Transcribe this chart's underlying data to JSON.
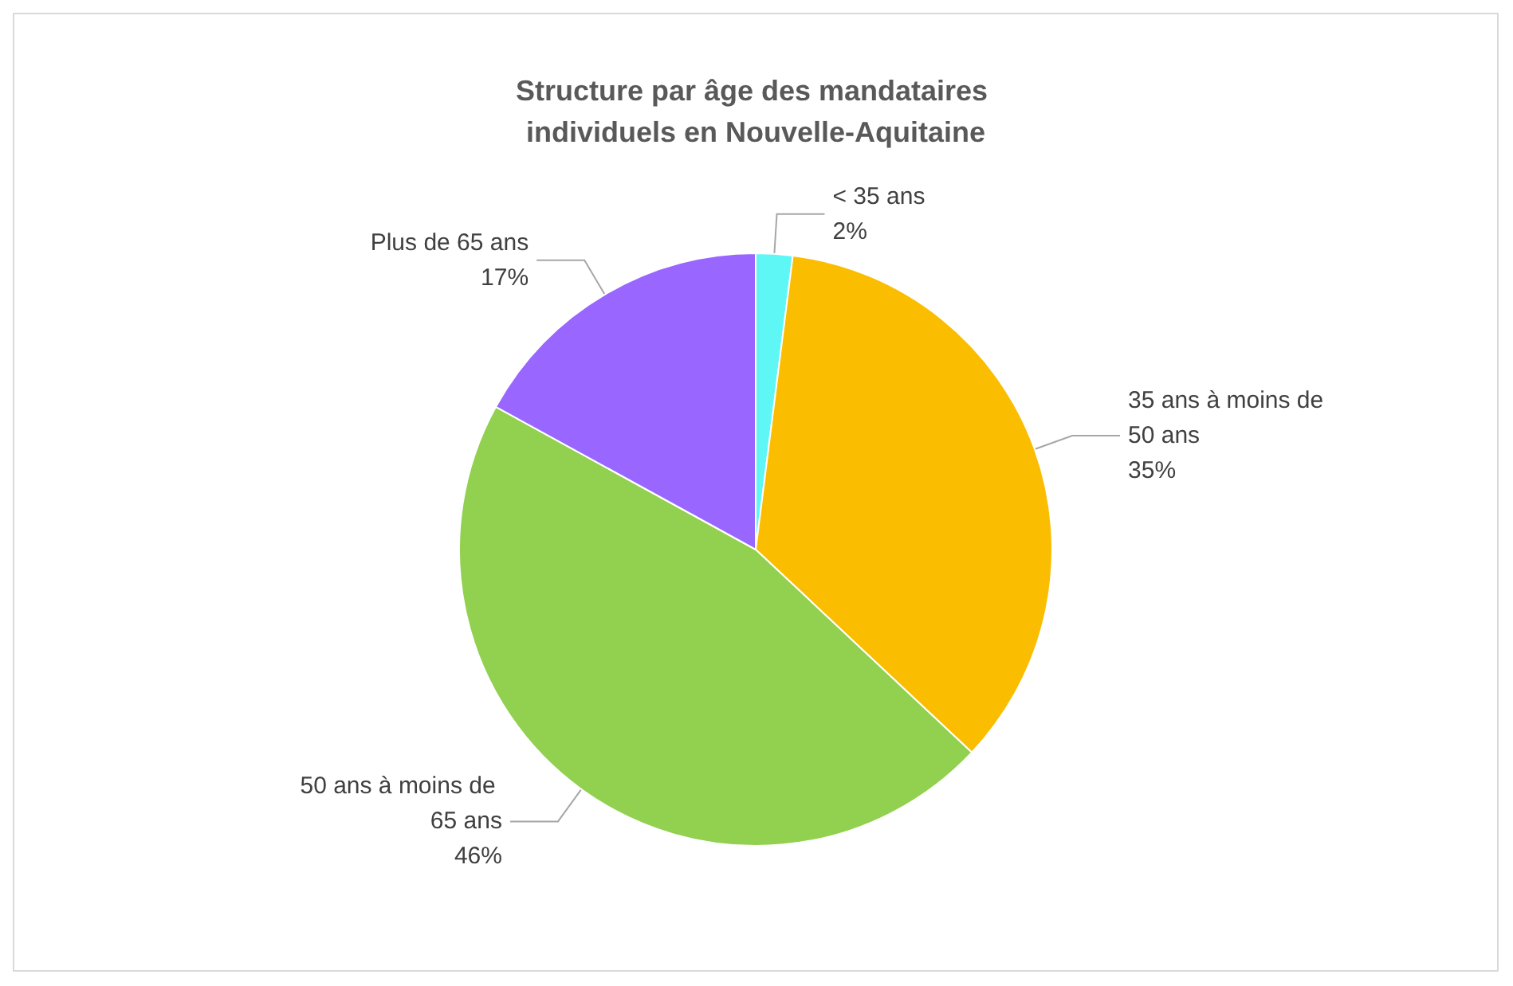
{
  "chart_data": {
    "type": "pie",
    "title": "Structure par âge des mandataires individuels en Nouvelle-Aquitaine",
    "categories": [
      "< 35 ans",
      "35 ans à moins de 50 ans",
      "50 ans à moins de 65 ans",
      "Plus de 65 ans"
    ],
    "values": [
      2,
      35,
      46,
      17
    ],
    "colors": [
      "#5ff6f6",
      "#fbbd00",
      "#92d050",
      "#9966ff"
    ],
    "value_labels": [
      "2%",
      "35%",
      "46%",
      "17%"
    ],
    "legend": false
  }
}
